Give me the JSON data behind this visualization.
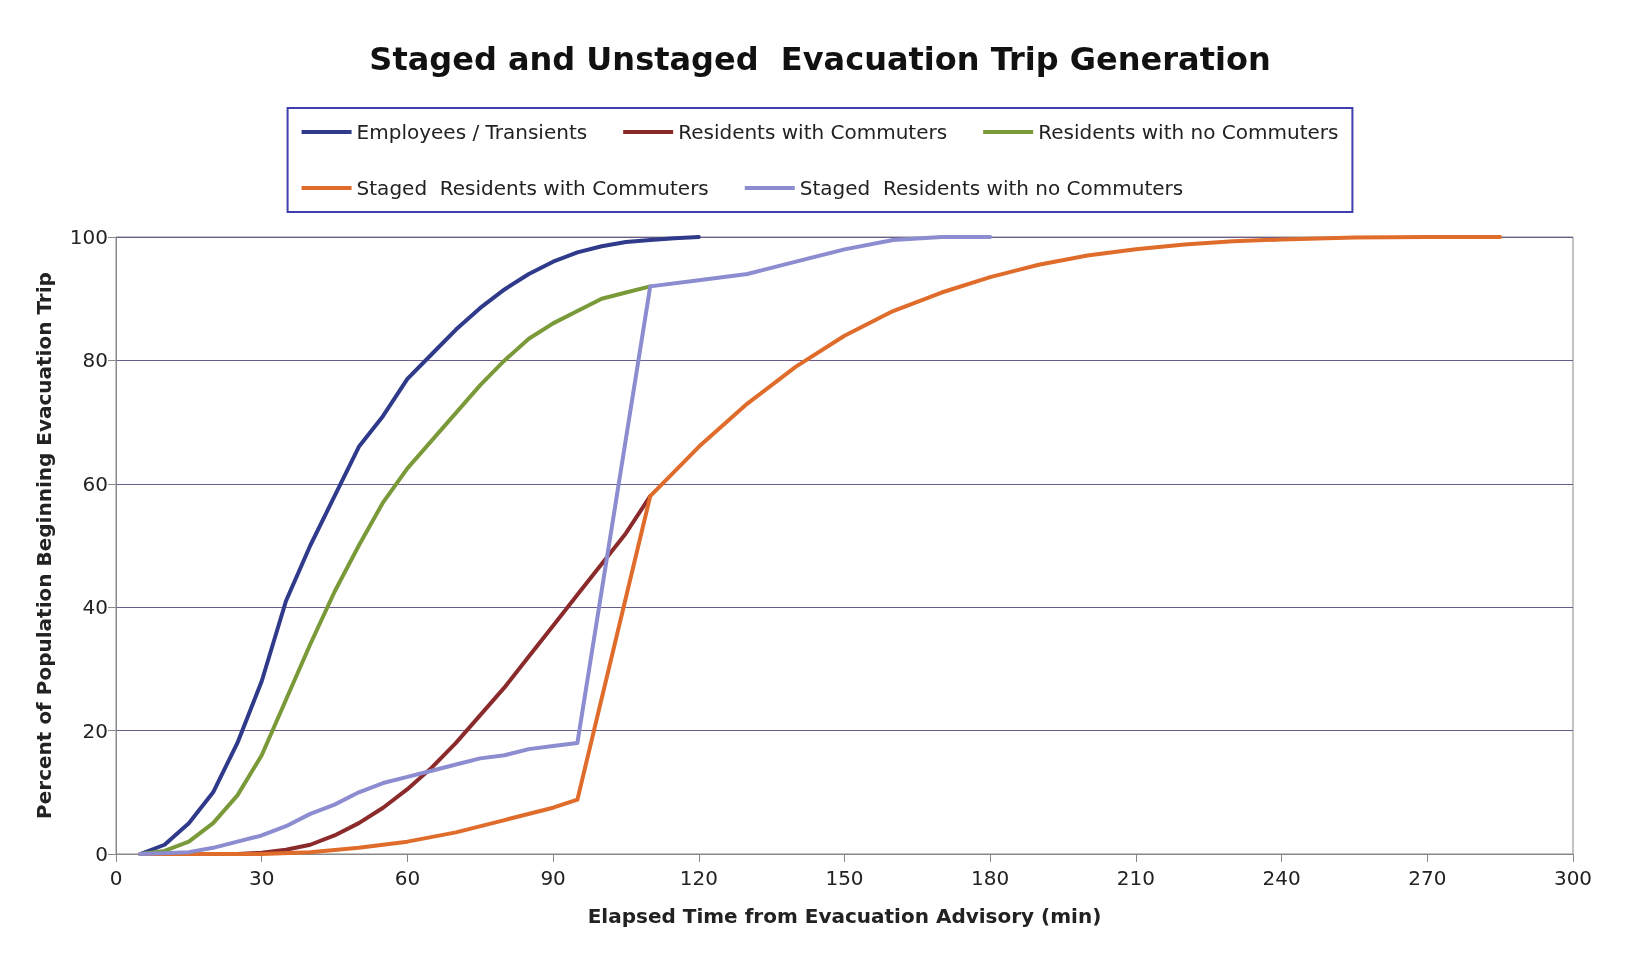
{
  "chart_data": {
    "type": "line",
    "title": "Staged and Unstaged  Evacuation Trip Generation",
    "xlabel": "Elapsed Time from Evacuation Advisory (min)",
    "ylabel": "Percent of Population Beginning Evacuation Trip",
    "xlim": [
      0,
      300
    ],
    "xticks": [
      0,
      30,
      60,
      90,
      120,
      150,
      180,
      210,
      240,
      270,
      300
    ],
    "ylim": [
      0,
      100
    ],
    "yticks": [
      0,
      20,
      40,
      60,
      80,
      100
    ],
    "grid": "y",
    "legend": "top",
    "marker": "none",
    "line_style": "solid",
    "series": [
      {
        "name": "Employees / Transients",
        "color": "#2f3a8a",
        "x": [
          5,
          10,
          15,
          20,
          25,
          30,
          35,
          40,
          45,
          50,
          55,
          60,
          65,
          70,
          75,
          80,
          85,
          90,
          95,
          100,
          105,
          110,
          115,
          120
        ],
        "values": [
          0,
          1.5,
          5,
          10,
          18,
          28,
          41,
          50,
          58,
          66,
          71,
          77,
          81,
          85,
          88.5,
          91.5,
          94,
          96,
          97.5,
          98.5,
          99.2,
          99.5,
          99.8,
          100
        ]
      },
      {
        "name": "Residents with Commuters",
        "color": "#8b2a2a",
        "x": [
          5,
          25,
          30,
          35,
          40,
          45,
          50,
          55,
          60,
          65,
          70,
          75,
          80,
          85,
          90,
          95,
          100,
          105,
          110
        ],
        "values": [
          0,
          0,
          0.2,
          0.7,
          1.5,
          3,
          5,
          7.5,
          10.5,
          14,
          18,
          22.5,
          27,
          32,
          37,
          42,
          47,
          52,
          58
        ]
      },
      {
        "name": "Residents with no Commuters",
        "color": "#7a9a3a",
        "x": [
          5,
          10,
          15,
          20,
          25,
          30,
          35,
          40,
          45,
          50,
          55,
          60,
          65,
          70,
          75,
          80,
          85,
          90,
          95,
          100,
          105,
          110
        ],
        "values": [
          0,
          0.5,
          2,
          5,
          9.5,
          16,
          25,
          34,
          42.5,
          50,
          57,
          62.5,
          67,
          71.5,
          76,
          80,
          83.5,
          86,
          88,
          90,
          91,
          92
        ]
      },
      {
        "name": "Staged  Residents with Commuters",
        "color": "#e06c2c",
        "x": [
          5,
          30,
          40,
          50,
          60,
          70,
          80,
          90,
          95,
          110,
          120,
          130,
          140,
          150,
          160,
          170,
          180,
          190,
          200,
          210,
          220,
          230,
          240,
          255,
          270,
          285
        ],
        "values": [
          0,
          0,
          0.3,
          1,
          2,
          3.5,
          5.5,
          7.5,
          8.8,
          58,
          66,
          73,
          79,
          84,
          88,
          91,
          93.5,
          95.5,
          97,
          98,
          98.8,
          99.3,
          99.6,
          99.9,
          100,
          100
        ]
      },
      {
        "name": "Staged  Residents with no Commuters",
        "color": "#8c8cd0",
        "x": [
          5,
          15,
          20,
          25,
          30,
          35,
          40,
          45,
          50,
          55,
          60,
          65,
          70,
          75,
          80,
          85,
          90,
          95,
          110,
          120,
          130,
          140,
          150,
          160,
          170,
          180
        ],
        "values": [
          0,
          0.3,
          1,
          2,
          3,
          4.5,
          6.5,
          8,
          10,
          11.5,
          12.5,
          13.5,
          14.5,
          15.5,
          16,
          17,
          17.5,
          18,
          92,
          93,
          94,
          96,
          98,
          99.5,
          100,
          100
        ]
      }
    ]
  }
}
